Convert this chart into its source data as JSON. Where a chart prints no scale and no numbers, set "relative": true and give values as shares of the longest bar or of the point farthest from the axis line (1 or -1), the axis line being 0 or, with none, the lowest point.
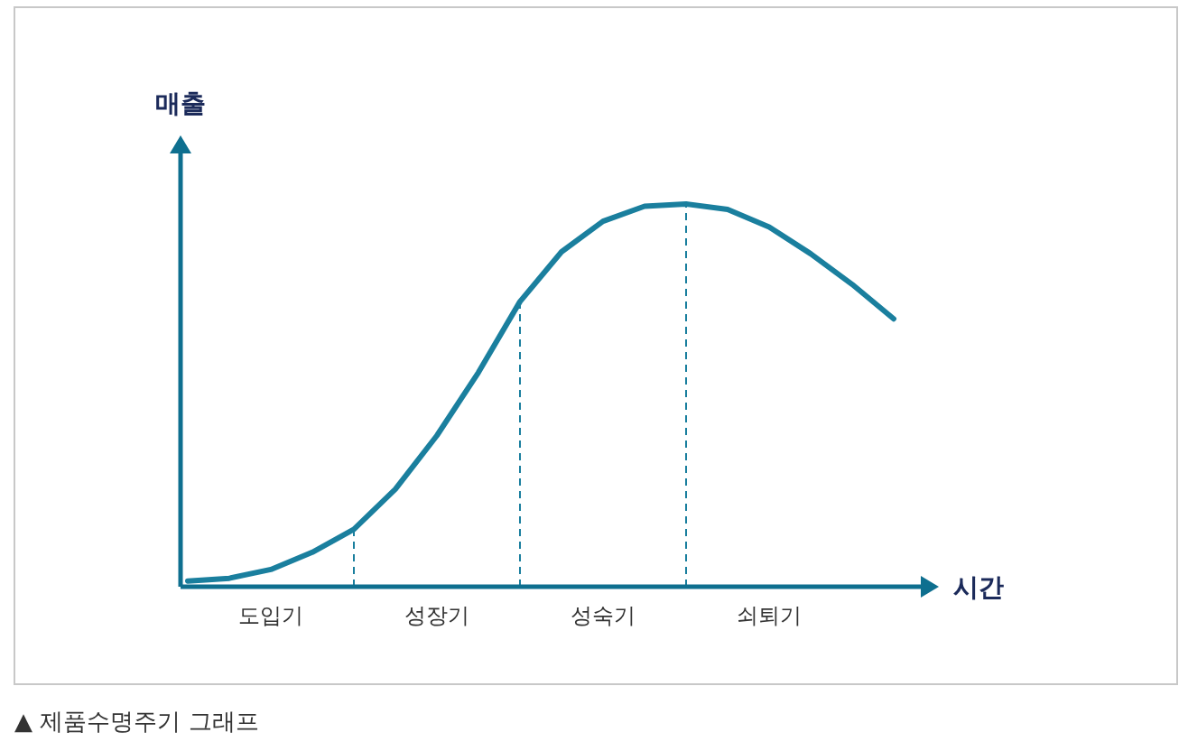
{
  "chart_data": {
    "type": "line",
    "xlabel": "시간",
    "ylabel": "매출",
    "relative": true,
    "categories": [
      null,
      null,
      "도입기",
      null,
      null,
      null,
      "성장기",
      null,
      null,
      null,
      "성숙기",
      null,
      null,
      null,
      "쇠퇴기",
      null,
      null,
      null
    ],
    "series": [
      {
        "color": "#1a7f9e",
        "values": [
          0.015,
          0.022,
          0.045,
          0.09,
          0.15,
          0.255,
          0.395,
          0.56,
          0.745,
          0.875,
          0.955,
          0.994,
          1,
          0.986,
          0.94,
          0.87,
          0.79,
          0.7
        ]
      }
    ],
    "line_style": "solid",
    "annotations": [
      "▲ 제품수명주기 그래프"
    ]
  }
}
